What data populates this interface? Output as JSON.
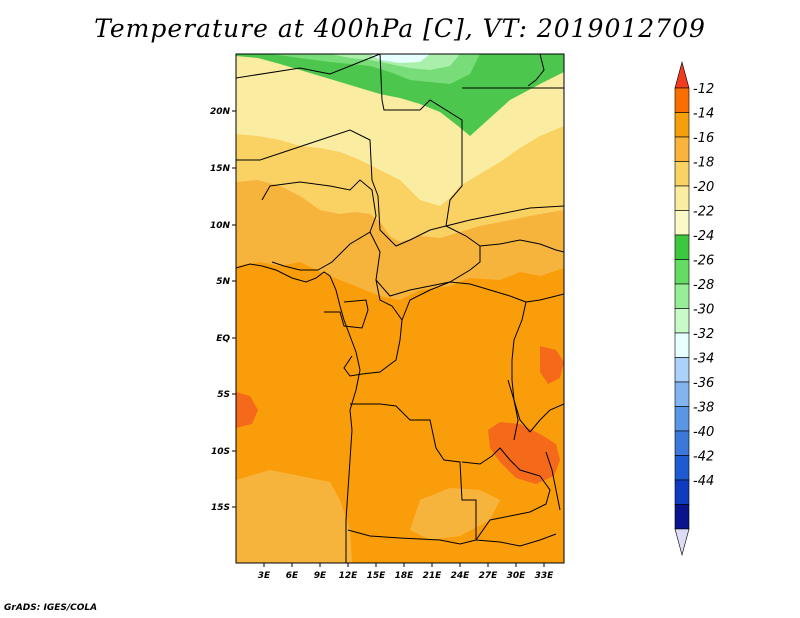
{
  "title": "Temperature at 400hPa [C], VT: 2019012709",
  "credit": "GrADS: IGES/COLA",
  "map": {
    "lat_labels": [
      "20N",
      "15N",
      "10N",
      "5N",
      "EQ",
      "5S",
      "10S",
      "15S"
    ],
    "lon_labels": [
      "3E",
      "6E",
      "9E",
      "12E",
      "15E",
      "18E",
      "21E",
      "24E",
      "27E",
      "30E",
      "33E"
    ]
  },
  "colorbar": {
    "levels": [
      "-12",
      "-14",
      "-16",
      "-18",
      "-20",
      "-22",
      "-24",
      "-26",
      "-28",
      "-30",
      "-32",
      "-34",
      "-36",
      "-38",
      "-40",
      "-42",
      "-44"
    ],
    "colors": [
      "#f03c1e",
      "#fa6e00",
      "#f5a00a",
      "#fab43c",
      "#fad264",
      "#faeca0",
      "#fafac8",
      "#3cc83c",
      "#64dc64",
      "#96ee96",
      "#c8fac8",
      "#e6ffff",
      "#aad2fa",
      "#82b4f0",
      "#5a96e6",
      "#3c78dc",
      "#1e5ad2",
      "#0f3cbe",
      "#0a148c",
      "#dcdcf5"
    ]
  }
}
